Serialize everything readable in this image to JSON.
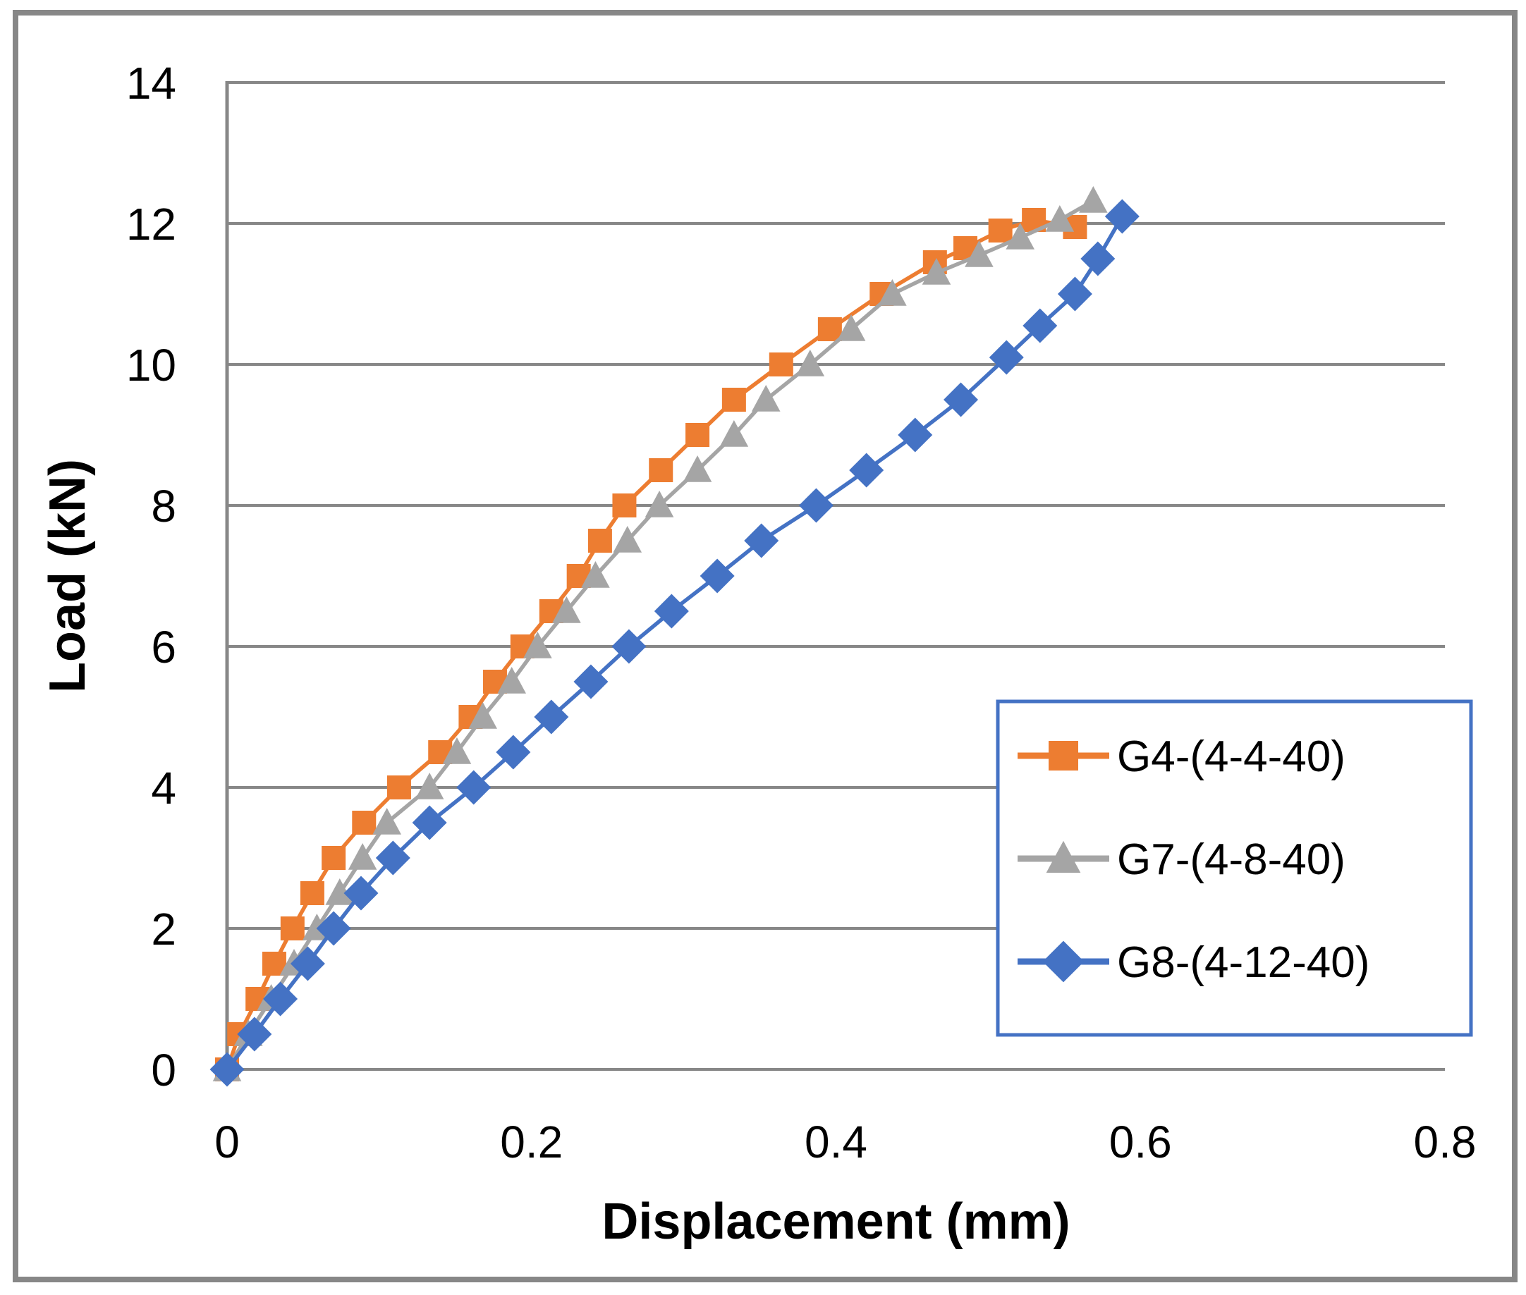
{
  "chart_data": {
    "type": "line",
    "title": "",
    "xlabel": "Displacement (mm)",
    "ylabel": "Load (kN)",
    "xlim": [
      0,
      0.8
    ],
    "ylim": [
      0,
      14
    ],
    "xticks": [
      0,
      0.2,
      0.4,
      0.6,
      0.8
    ],
    "x_tick_labels": [
      "0",
      "0.2",
      "0.4",
      "0.6",
      "0.8"
    ],
    "yticks": [
      0,
      2,
      4,
      6,
      8,
      10,
      12,
      14
    ],
    "y_tick_labels": [
      "0",
      "2",
      "4",
      "6",
      "8",
      "10",
      "12",
      "14"
    ],
    "grid": "horizontal-only",
    "legend_position": "inside-bottom-right",
    "series": [
      {
        "name": "G4-(4-4-40)",
        "color": "#ED7D31",
        "marker": "square",
        "points": [
          [
            0,
            0
          ],
          [
            0.008,
            0.5
          ],
          [
            0.02,
            1.0
          ],
          [
            0.031,
            1.5
          ],
          [
            0.043,
            2.0
          ],
          [
            0.056,
            2.5
          ],
          [
            0.07,
            3.0
          ],
          [
            0.09,
            3.5
          ],
          [
            0.113,
            4.0
          ],
          [
            0.14,
            4.5
          ],
          [
            0.16,
            5.0
          ],
          [
            0.176,
            5.5
          ],
          [
            0.194,
            6.0
          ],
          [
            0.213,
            6.5
          ],
          [
            0.231,
            7.0
          ],
          [
            0.245,
            7.5
          ],
          [
            0.261,
            8.0
          ],
          [
            0.285,
            8.5
          ],
          [
            0.309,
            9.0
          ],
          [
            0.333,
            9.5
          ],
          [
            0.364,
            10.0
          ],
          [
            0.396,
            10.5
          ],
          [
            0.43,
            11.0
          ],
          [
            0.465,
            11.45
          ],
          [
            0.485,
            11.65
          ],
          [
            0.508,
            11.9
          ],
          [
            0.53,
            12.05
          ],
          [
            0.557,
            11.95
          ]
        ]
      },
      {
        "name": "G7-(4-8-40)",
        "color": "#A5A5A5",
        "marker": "triangle",
        "points": [
          [
            0,
            0
          ],
          [
            0.014,
            0.5
          ],
          [
            0.029,
            1.0
          ],
          [
            0.044,
            1.5
          ],
          [
            0.059,
            2.0
          ],
          [
            0.074,
            2.5
          ],
          [
            0.089,
            3.0
          ],
          [
            0.105,
            3.5
          ],
          [
            0.133,
            4.0
          ],
          [
            0.151,
            4.5
          ],
          [
            0.168,
            5.0
          ],
          [
            0.187,
            5.5
          ],
          [
            0.204,
            6.0
          ],
          [
            0.223,
            6.5
          ],
          [
            0.242,
            7.0
          ],
          [
            0.263,
            7.5
          ],
          [
            0.284,
            8.0
          ],
          [
            0.309,
            8.5
          ],
          [
            0.333,
            9.0
          ],
          [
            0.354,
            9.5
          ],
          [
            0.383,
            10.0
          ],
          [
            0.41,
            10.5
          ],
          [
            0.437,
            11.0
          ],
          [
            0.466,
            11.3
          ],
          [
            0.494,
            11.55
          ],
          [
            0.521,
            11.8
          ],
          [
            0.547,
            12.05
          ],
          [
            0.569,
            12.32
          ]
        ]
      },
      {
        "name": "G8-(4-12-40)",
        "color": "#4472C4",
        "marker": "diamond",
        "points": [
          [
            0,
            0
          ],
          [
            0.018,
            0.5
          ],
          [
            0.035,
            1.0
          ],
          [
            0.053,
            1.5
          ],
          [
            0.07,
            2.0
          ],
          [
            0.088,
            2.5
          ],
          [
            0.109,
            3.0
          ],
          [
            0.133,
            3.5
          ],
          [
            0.162,
            4.0
          ],
          [
            0.188,
            4.5
          ],
          [
            0.213,
            5.0
          ],
          [
            0.239,
            5.5
          ],
          [
            0.264,
            6.0
          ],
          [
            0.292,
            6.5
          ],
          [
            0.322,
            7.0
          ],
          [
            0.351,
            7.5
          ],
          [
            0.387,
            8.0
          ],
          [
            0.42,
            8.5
          ],
          [
            0.452,
            9.0
          ],
          [
            0.482,
            9.5
          ],
          [
            0.512,
            10.1
          ],
          [
            0.534,
            10.55
          ],
          [
            0.557,
            11.0
          ],
          [
            0.572,
            11.5
          ],
          [
            0.588,
            12.1
          ]
        ]
      }
    ]
  },
  "colors": {
    "background": "#FFFFFF",
    "frame_border": "#878787",
    "gridline": "#878787",
    "axis_line": "#878787",
    "tick_text": "#000000",
    "legend_border": "#4472C4",
    "legend_fill": "#FFFFFF"
  }
}
